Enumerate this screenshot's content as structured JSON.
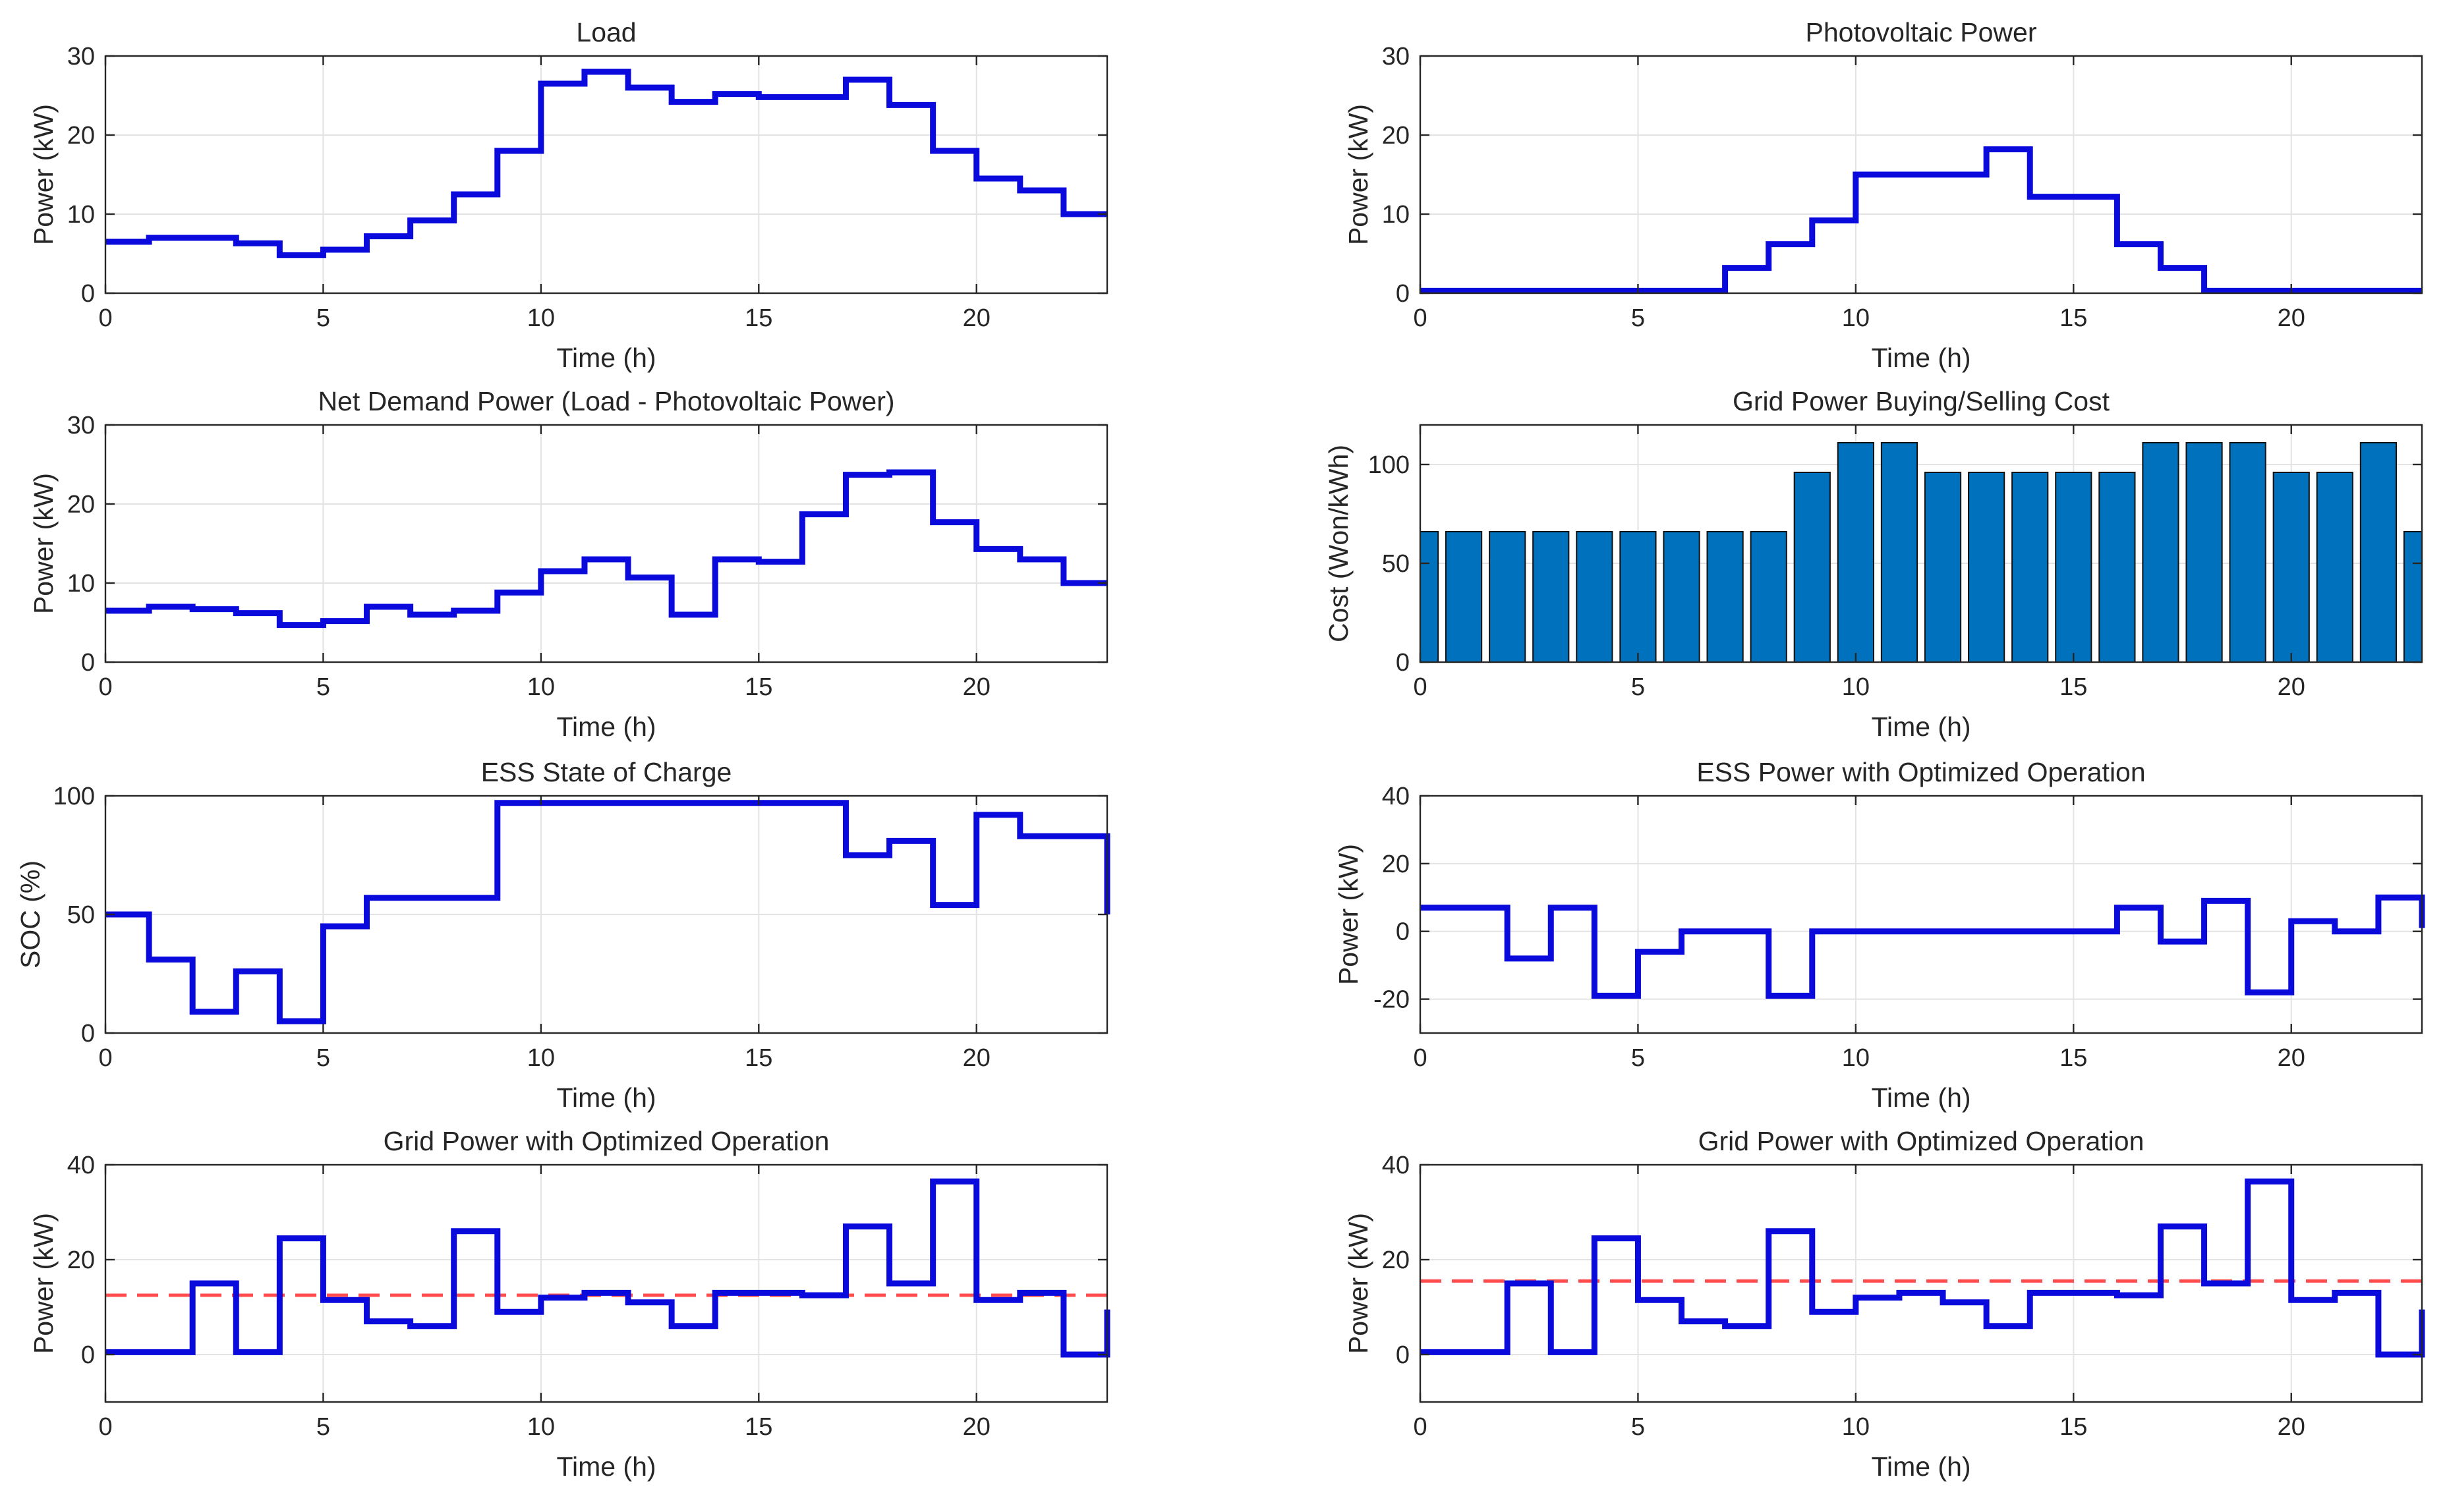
{
  "figure": {
    "background": "#ffffff",
    "line_color": "#0a0adc",
    "bar_color": "#0072bd",
    "ref_color": "#ff4d4d"
  },
  "chart_data": [
    {
      "id": "load",
      "type": "line",
      "style": "stairs",
      "title": "Load",
      "xlabel": "Time (h)",
      "ylabel": "Power (kW)",
      "xlim": [
        0,
        23
      ],
      "ylim": [
        0,
        30
      ],
      "xticks": [
        0,
        5,
        10,
        15,
        20
      ],
      "yticks": [
        0,
        10,
        20,
        30
      ],
      "grid": true,
      "x": [
        0,
        1,
        2,
        3,
        4,
        5,
        6,
        7,
        8,
        9,
        10,
        11,
        12,
        13,
        14,
        15,
        16,
        17,
        18,
        19,
        20,
        21,
        22,
        23
      ],
      "values": [
        6.5,
        7,
        7,
        6.3,
        4.8,
        5.5,
        7.2,
        9.2,
        12.5,
        18,
        26.5,
        28,
        26,
        24.2,
        25.2,
        24.8,
        24.8,
        27,
        23.8,
        18,
        14.5,
        13,
        10,
        10
      ]
    },
    {
      "id": "pv",
      "type": "line",
      "style": "stairs",
      "title": "Photovoltaic Power",
      "xlabel": "Time (h)",
      "ylabel": "Power (kW)",
      "xlim": [
        0,
        23
      ],
      "ylim": [
        0,
        30
      ],
      "xticks": [
        0,
        5,
        10,
        15,
        20
      ],
      "yticks": [
        0,
        10,
        20,
        30
      ],
      "grid": true,
      "x": [
        0,
        1,
        2,
        3,
        4,
        5,
        6,
        7,
        8,
        9,
        10,
        11,
        12,
        13,
        14,
        15,
        16,
        17,
        18,
        19,
        20,
        21,
        22,
        23
      ],
      "values": [
        0.3,
        0.3,
        0.3,
        0.3,
        0.3,
        0.3,
        0.3,
        3.2,
        6.2,
        9.2,
        15,
        15,
        15,
        18.2,
        12.2,
        12.2,
        6.2,
        3.2,
        0.3,
        0.3,
        0.3,
        0.3,
        0.3,
        0.3
      ]
    },
    {
      "id": "net",
      "type": "line",
      "style": "stairs",
      "title": "Net Demand Power (Load - Photovoltaic Power)",
      "xlabel": "Time (h)",
      "ylabel": "Power (kW)",
      "xlim": [
        0,
        23
      ],
      "ylim": [
        0,
        30
      ],
      "xticks": [
        0,
        5,
        10,
        15,
        20
      ],
      "yticks": [
        0,
        10,
        20,
        30
      ],
      "grid": true,
      "x": [
        0,
        1,
        2,
        3,
        4,
        5,
        6,
        7,
        8,
        9,
        10,
        11,
        12,
        13,
        14,
        15,
        16,
        17,
        18,
        19,
        20,
        21,
        22,
        23
      ],
      "values": [
        6.5,
        7,
        6.7,
        6.2,
        4.7,
        5.2,
        7,
        6,
        6.5,
        8.8,
        11.5,
        13,
        10.7,
        6,
        13,
        12.7,
        18.7,
        23.7,
        24,
        17.7,
        14.3,
        13,
        10,
        10
      ]
    },
    {
      "id": "price",
      "type": "bar",
      "title": "Grid Power Buying/Selling Cost",
      "xlabel": "Time (h)",
      "ylabel": "Cost (Won/kWh)",
      "xlim": [
        0,
        23
      ],
      "ylim": [
        0,
        120
      ],
      "xticks": [
        0,
        5,
        10,
        15,
        20
      ],
      "yticks": [
        0,
        50,
        100
      ],
      "grid": true,
      "x": [
        0,
        1,
        2,
        3,
        4,
        5,
        6,
        7,
        8,
        9,
        10,
        11,
        12,
        13,
        14,
        15,
        16,
        17,
        18,
        19,
        20,
        21,
        22,
        23
      ],
      "values": [
        66,
        66,
        66,
        66,
        66,
        66,
        66,
        66,
        66,
        96,
        111,
        111,
        96,
        96,
        96,
        96,
        96,
        111,
        111,
        111,
        96,
        96,
        111,
        66
      ]
    },
    {
      "id": "soc",
      "type": "line",
      "style": "stairs",
      "title": "ESS State of Charge",
      "xlabel": "Time (h)",
      "ylabel": "SOC (%)",
      "xlim": [
        0,
        23
      ],
      "ylim": [
        0,
        100
      ],
      "xticks": [
        0,
        5,
        10,
        15,
        20
      ],
      "yticks": [
        0,
        50,
        100
      ],
      "grid": true,
      "x": [
        0,
        1,
        2,
        3,
        4,
        5,
        6,
        7,
        8,
        9,
        10,
        11,
        12,
        13,
        14,
        15,
        16,
        17,
        18,
        19,
        20,
        21,
        22,
        23
      ],
      "values": [
        50,
        31,
        9,
        26,
        5,
        45,
        57,
        57,
        57,
        97,
        97,
        97,
        97,
        97,
        97,
        97,
        97,
        75,
        81,
        54,
        92,
        83,
        83,
        50
      ]
    },
    {
      "id": "ess",
      "type": "line",
      "style": "stairs",
      "title": "ESS Power with Optimized Operation",
      "xlabel": "Time (h)",
      "ylabel": "Power (kW)",
      "xlim": [
        0,
        23
      ],
      "ylim": [
        -30,
        40
      ],
      "xticks": [
        0,
        5,
        10,
        15,
        20
      ],
      "yticks": [
        -20,
        0,
        20,
        40
      ],
      "grid": true,
      "x": [
        0,
        1,
        2,
        3,
        4,
        5,
        6,
        7,
        8,
        9,
        10,
        11,
        12,
        13,
        14,
        15,
        16,
        17,
        18,
        19,
        20,
        21,
        22,
        23
      ],
      "values": [
        7,
        7,
        -8,
        7,
        -19,
        -6,
        0,
        0,
        -19,
        0,
        0,
        0,
        0,
        0,
        0,
        0,
        7,
        -3,
        9,
        -18,
        3,
        0,
        10,
        1
      ]
    },
    {
      "id": "grid1",
      "type": "line",
      "style": "stairs",
      "title": "Grid Power with Optimized Operation",
      "xlabel": "Time (h)",
      "ylabel": "Power (kW)",
      "xlim": [
        0,
        23
      ],
      "ylim": [
        -10,
        40
      ],
      "xticks": [
        0,
        5,
        10,
        15,
        20
      ],
      "yticks": [
        0,
        20,
        40
      ],
      "grid": true,
      "reference": 12.5,
      "x": [
        0,
        1,
        2,
        3,
        4,
        5,
        6,
        7,
        8,
        9,
        10,
        11,
        12,
        13,
        14,
        15,
        16,
        17,
        18,
        19,
        20,
        21,
        22,
        23
      ],
      "values": [
        0.5,
        0.5,
        15,
        0.5,
        24.5,
        11.5,
        7,
        6,
        26,
        9,
        12,
        13,
        11,
        6,
        13,
        13,
        12.5,
        27,
        15,
        36.5,
        11.5,
        13,
        0,
        9.5
      ]
    },
    {
      "id": "grid2",
      "type": "line",
      "style": "stairs",
      "title": "Grid Power with Optimized Operation",
      "xlabel": "Time (h)",
      "ylabel": "Power (kW)",
      "xlim": [
        0,
        23
      ],
      "ylim": [
        -10,
        40
      ],
      "xticks": [
        0,
        5,
        10,
        15,
        20
      ],
      "yticks": [
        0,
        20,
        40
      ],
      "grid": true,
      "reference": 15.5,
      "x": [
        0,
        1,
        2,
        3,
        4,
        5,
        6,
        7,
        8,
        9,
        10,
        11,
        12,
        13,
        14,
        15,
        16,
        17,
        18,
        19,
        20,
        21,
        22,
        23
      ],
      "values": [
        0.5,
        0.5,
        15,
        0.5,
        24.5,
        11.5,
        7,
        6,
        26,
        9,
        12,
        13,
        11,
        6,
        13,
        13,
        12.5,
        27,
        15,
        36.5,
        11.5,
        13,
        0,
        9.5
      ]
    }
  ]
}
